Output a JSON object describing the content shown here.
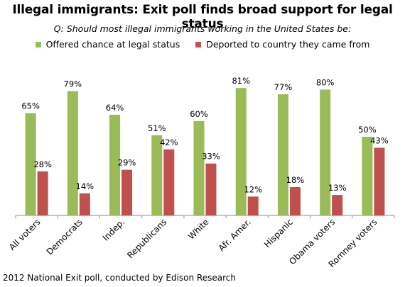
{
  "title": "Illegal immigrants: Exit poll finds broad support for legal status",
  "subtitle": "Q: Should most illegal immigrants working in the United States be:",
  "source": "2012 National Exit poll, conducted by Edison Research",
  "colors": {
    "legal": "#9bbb59",
    "deported": "#c0504d"
  },
  "chart_data": {
    "type": "bar",
    "categories": [
      "All voters",
      "Democrats",
      "Indep.",
      "Republicans",
      "White",
      "Afr. Amer.",
      "Hispanic",
      "Obama voters",
      "Romney voters"
    ],
    "series": [
      {
        "name": "Offered chance at legal status",
        "values": [
          65,
          79,
          64,
          51,
          60,
          81,
          77,
          80,
          50
        ]
      },
      {
        "name": "Deported to country they came from",
        "values": [
          28,
          14,
          29,
          42,
          33,
          12,
          18,
          13,
          43
        ]
      }
    ],
    "value_suffix": "%",
    "ylim": [
      0,
      100
    ],
    "grid": false,
    "legend": "top"
  }
}
